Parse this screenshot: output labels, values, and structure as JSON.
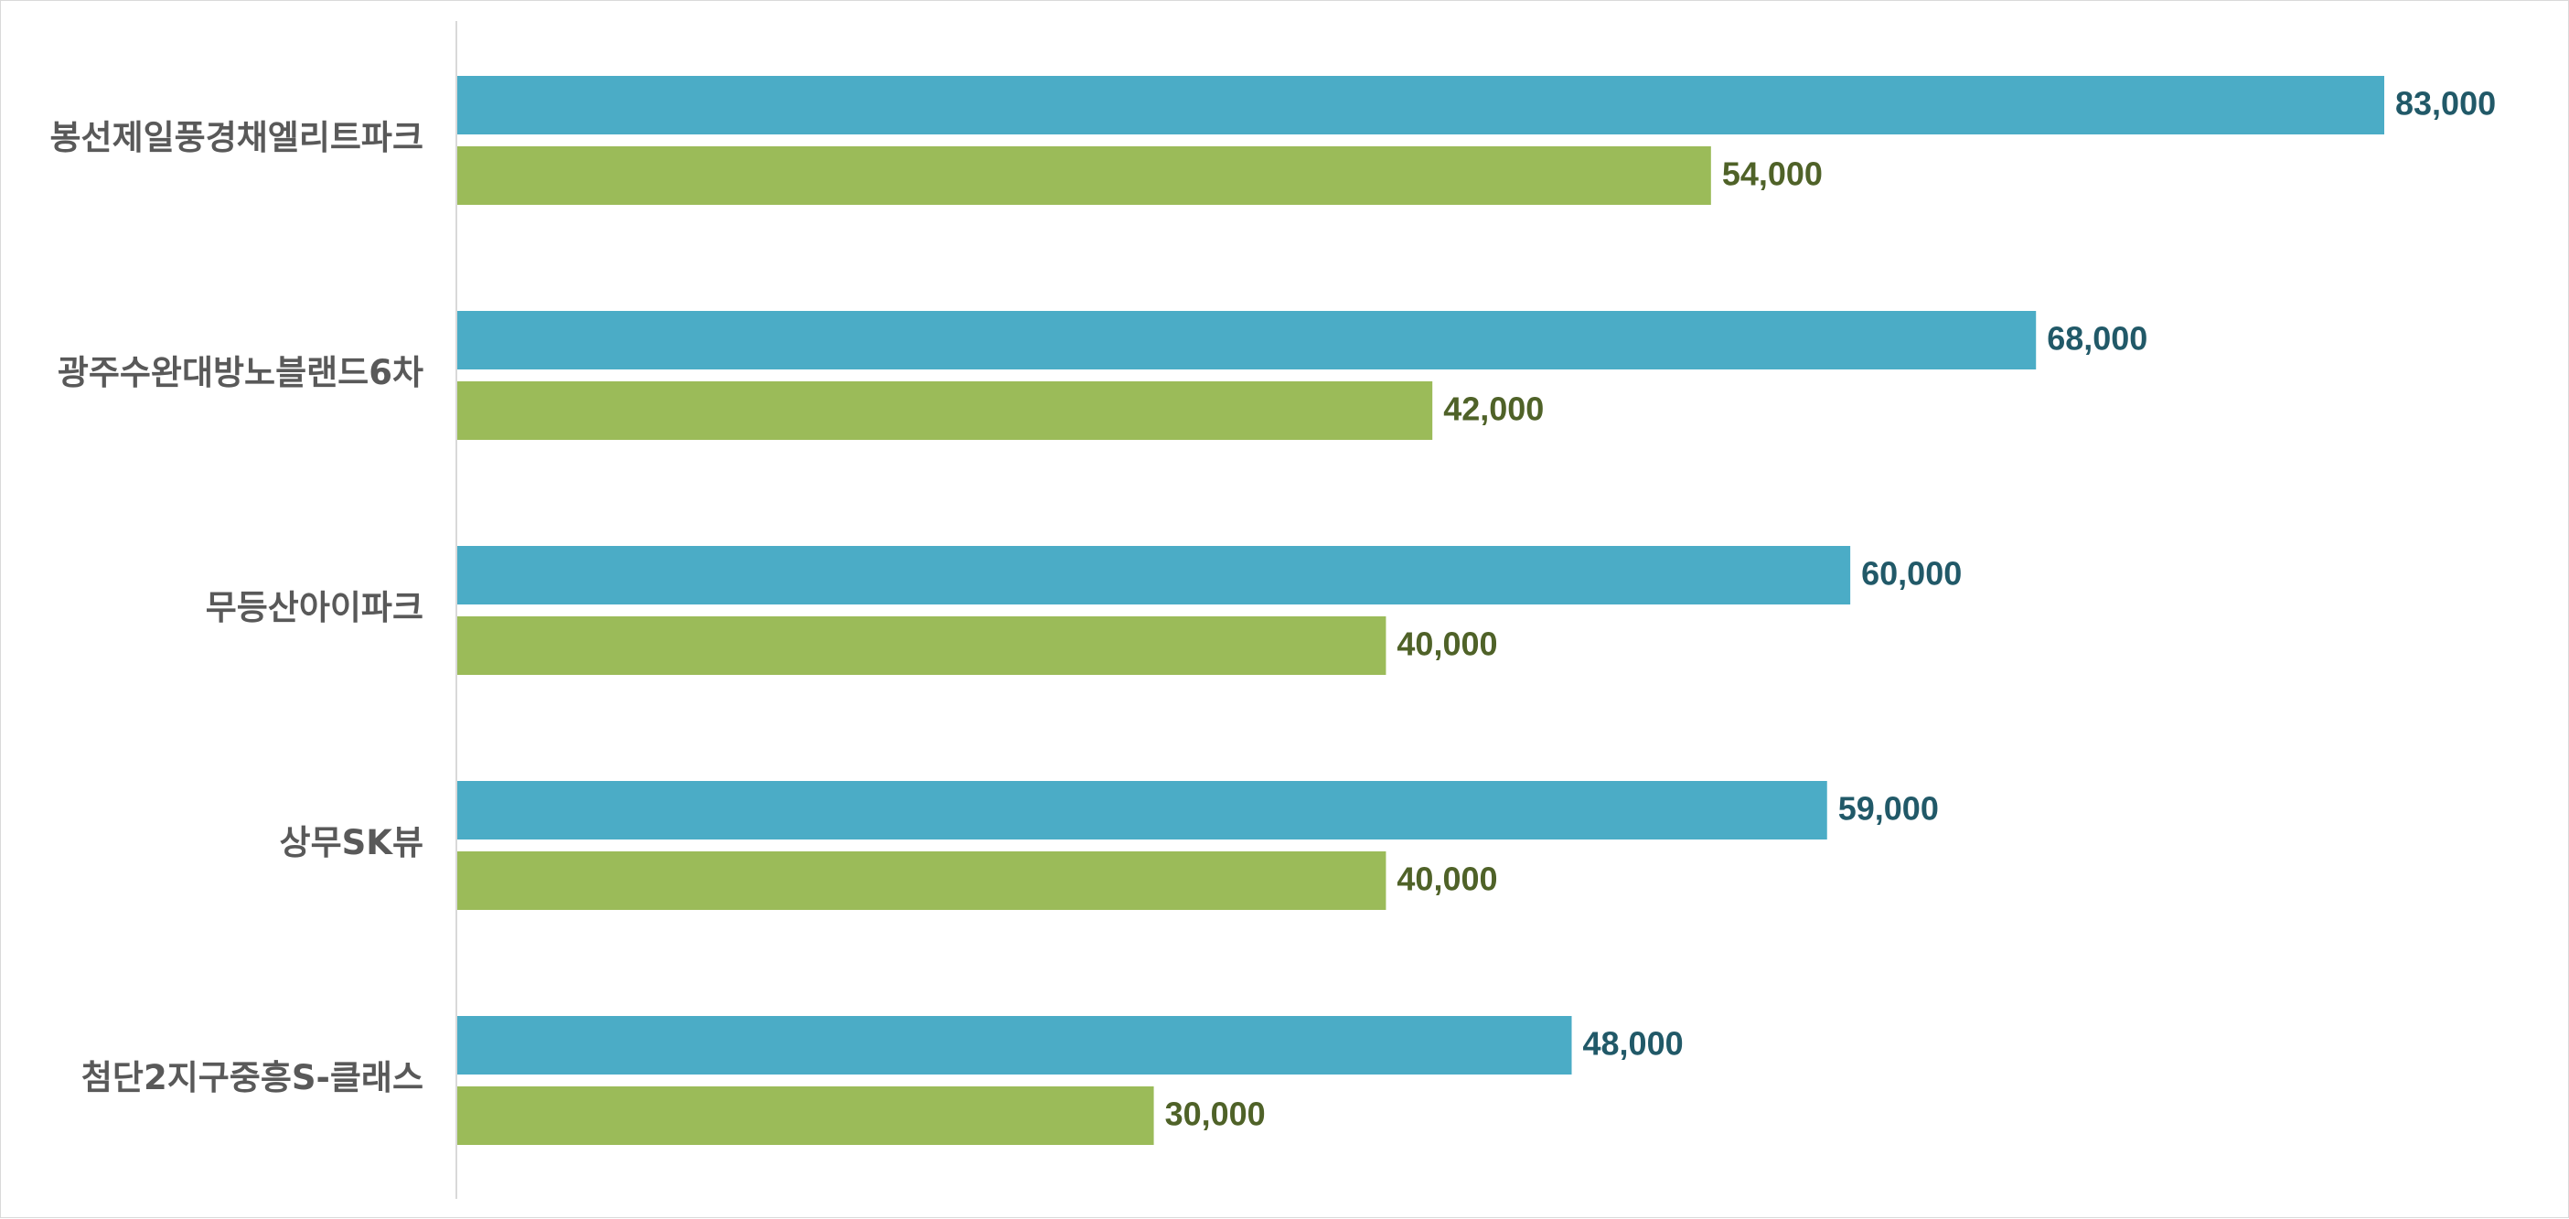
{
  "chart_data": {
    "type": "bar",
    "orientation": "horizontal",
    "title": "",
    "xlabel": "",
    "ylabel": "",
    "categories": [
      "봉선제일풍경채엘리트파크",
      "광주수완대방노블랜드6차",
      "무등산아이파크",
      "상무SK뷰",
      "첨단2지구중흥S-클래스"
    ],
    "series": [
      {
        "name": "series-1",
        "color": "#4bacc6",
        "label_color": "#215968",
        "values": [
          83000,
          68000,
          60000,
          59000,
          48000
        ],
        "labels": [
          "83,000",
          "68,000",
          "60,000",
          "59,000",
          "48,000"
        ]
      },
      {
        "name": "series-2",
        "color": "#9bbb59",
        "label_color": "#4f6228",
        "values": [
          54000,
          42000,
          40000,
          40000,
          30000
        ],
        "labels": [
          "54,000",
          "42,000",
          "40,000",
          "40,000",
          "30,000"
        ]
      }
    ],
    "xlim": [
      0,
      83000
    ],
    "grid": false,
    "legend": "none"
  }
}
